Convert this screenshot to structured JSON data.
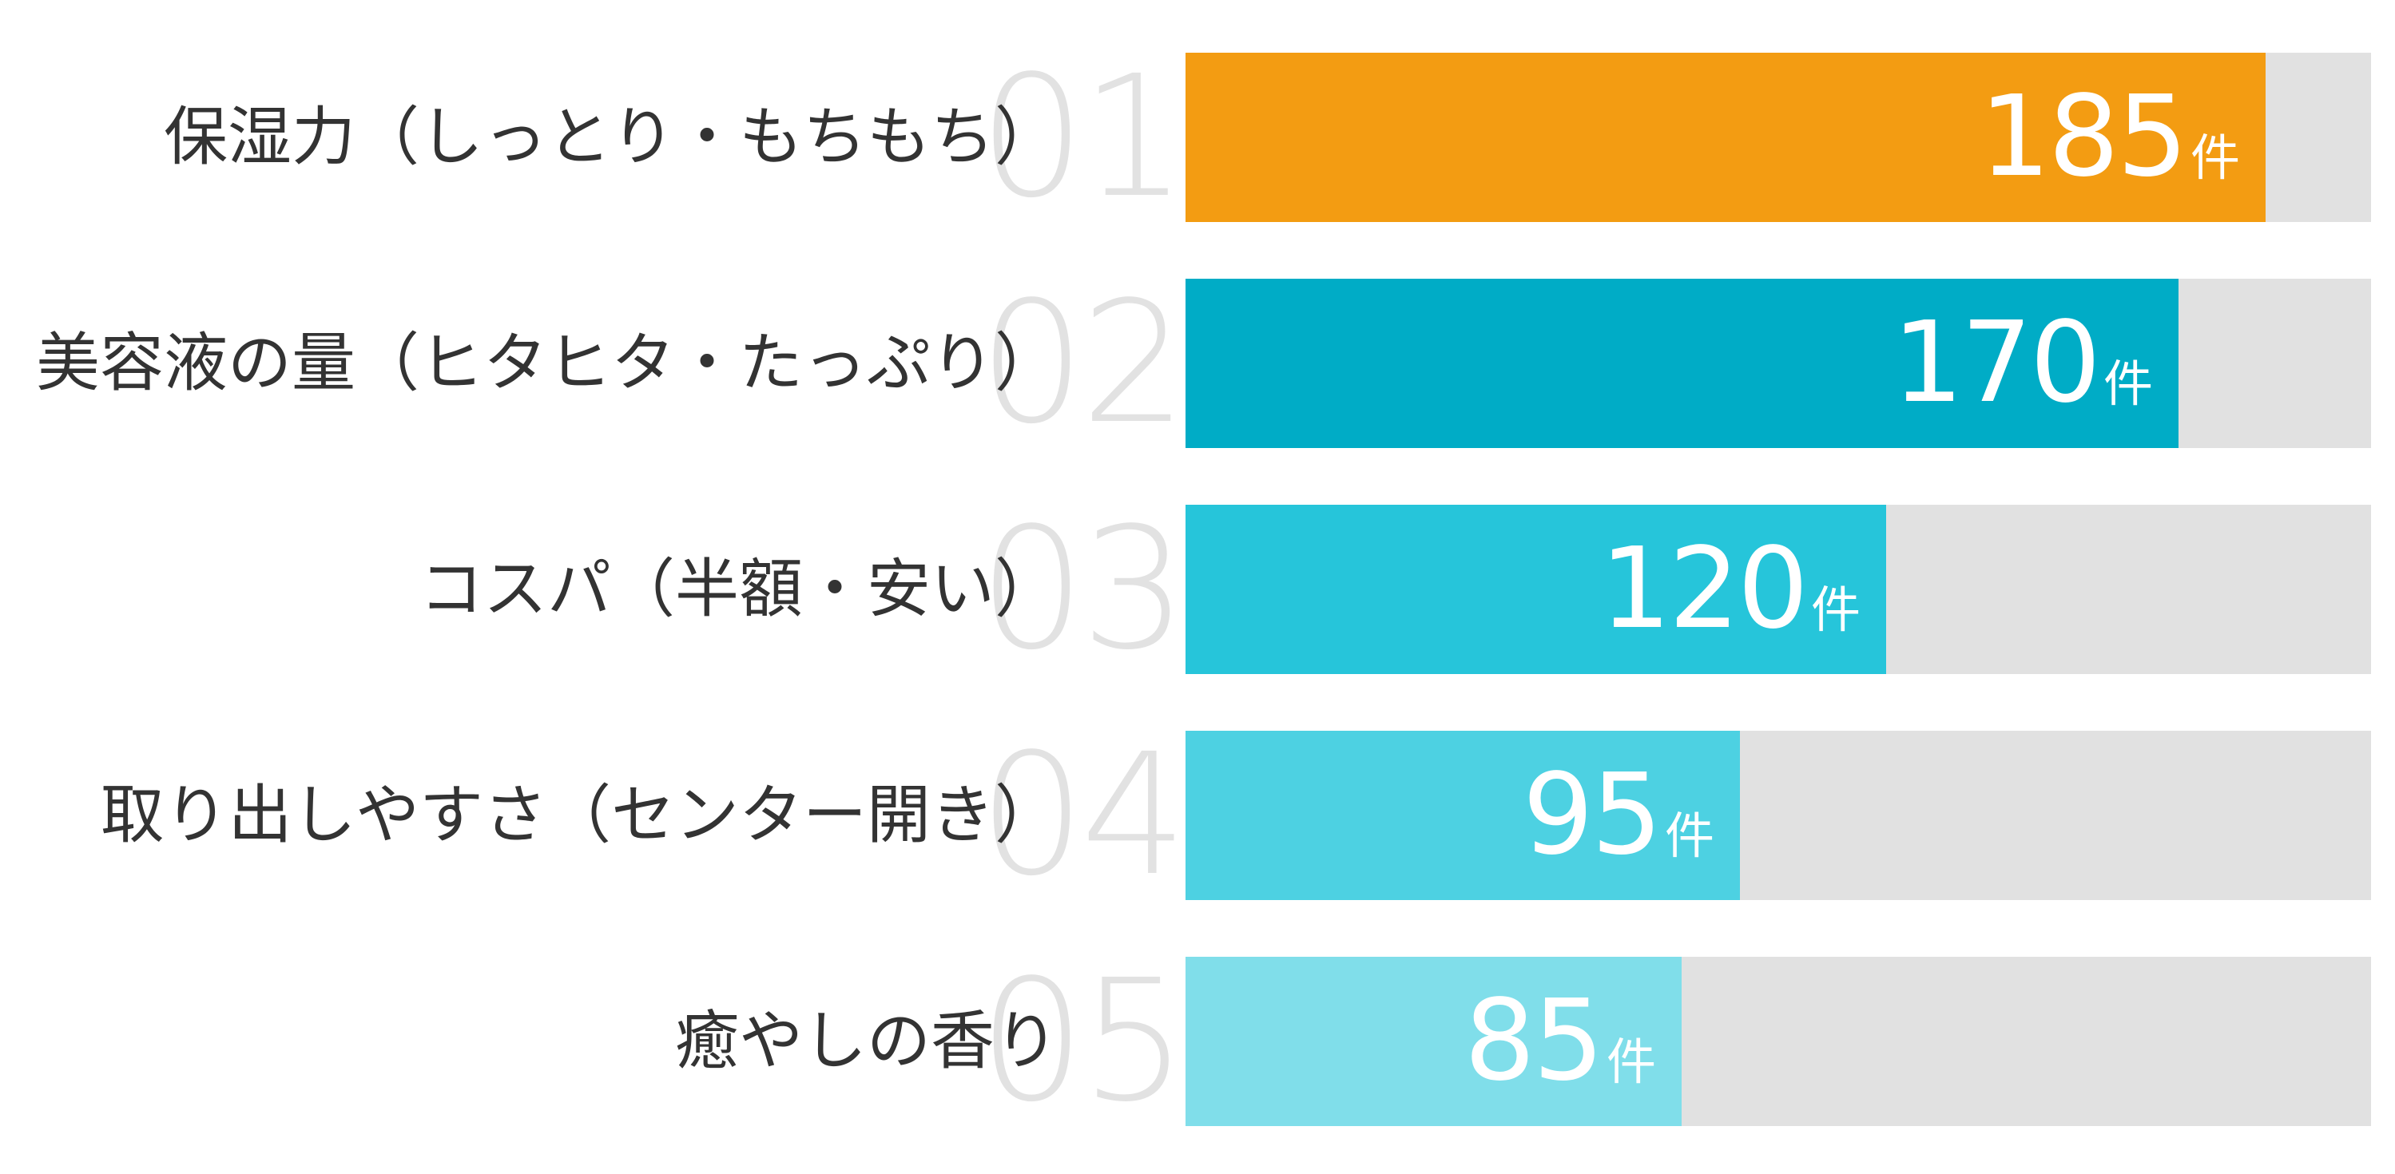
{
  "chart_data": {
    "type": "bar",
    "orientation": "horizontal",
    "categories": [
      "保湿力（しっとり・もちもち）",
      "美容液の量（ヒタヒタ・たっぷり）",
      "コスパ（半額・安い）",
      "取り出しやすさ（センター開き）",
      "癒やしの香り"
    ],
    "ranks": [
      "01",
      "02",
      "03",
      "04",
      "05"
    ],
    "values": [
      185,
      170,
      120,
      95,
      85
    ],
    "unit": "件",
    "xlim": [
      0,
      203
    ],
    "colors": [
      "#f39c12",
      "#00acc6",
      "#26c5da",
      "#4dd1e2",
      "#80deea"
    ],
    "track_color": "#e1e1e1",
    "grid": false
  }
}
